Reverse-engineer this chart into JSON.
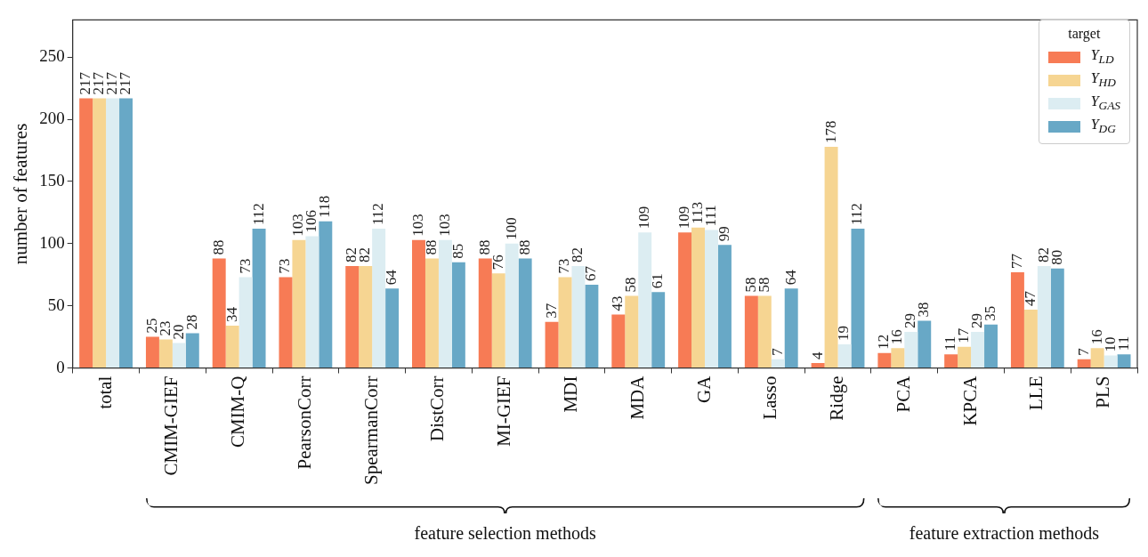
{
  "chart_data": {
    "type": "bar",
    "ylabel": "number of features",
    "legend_title": "target",
    "legend": "top right",
    "grid": false,
    "data_labels": true,
    "categories": [
      "total",
      "CMIM-GIEF",
      "CMIM-Q",
      "PearsonCorr",
      "SpearmanCorr",
      "DistCorr",
      "MI-GIEF",
      "MDI",
      "MDA",
      "GA",
      "Lasso",
      "Ridge",
      "PCA",
      "KPCA",
      "LLE",
      "PLS"
    ],
    "ylim": [
      0,
      280
    ],
    "yticks": [
      0,
      50,
      100,
      150,
      200,
      250
    ],
    "series": [
      {
        "name": "Y$_{LD}$",
        "color": "#f77b55",
        "values": [
          217,
          25,
          88,
          73,
          82,
          103,
          88,
          37,
          43,
          109,
          58,
          4,
          12,
          11,
          77,
          7
        ]
      },
      {
        "name": "Y$_{HD}$",
        "color": "#f6d592",
        "values": [
          217,
          23,
          34,
          103,
          82,
          88,
          76,
          73,
          58,
          113,
          58,
          178,
          16,
          17,
          47,
          16
        ]
      },
      {
        "name": "Y$_{GAS}$",
        "color": "#dcedf2",
        "values": [
          217,
          20,
          73,
          106,
          112,
          103,
          100,
          82,
          109,
          111,
          7,
          19,
          29,
          29,
          82,
          10
        ]
      },
      {
        "name": "Y$_{DG}$",
        "color": "#68a8c6",
        "values": [
          217,
          28,
          112,
          118,
          64,
          85,
          88,
          67,
          61,
          99,
          64,
          112,
          38,
          35,
          80,
          11
        ]
      }
    ],
    "annotations": [
      "feature selection methods",
      "feature extraction methods"
    ]
  }
}
